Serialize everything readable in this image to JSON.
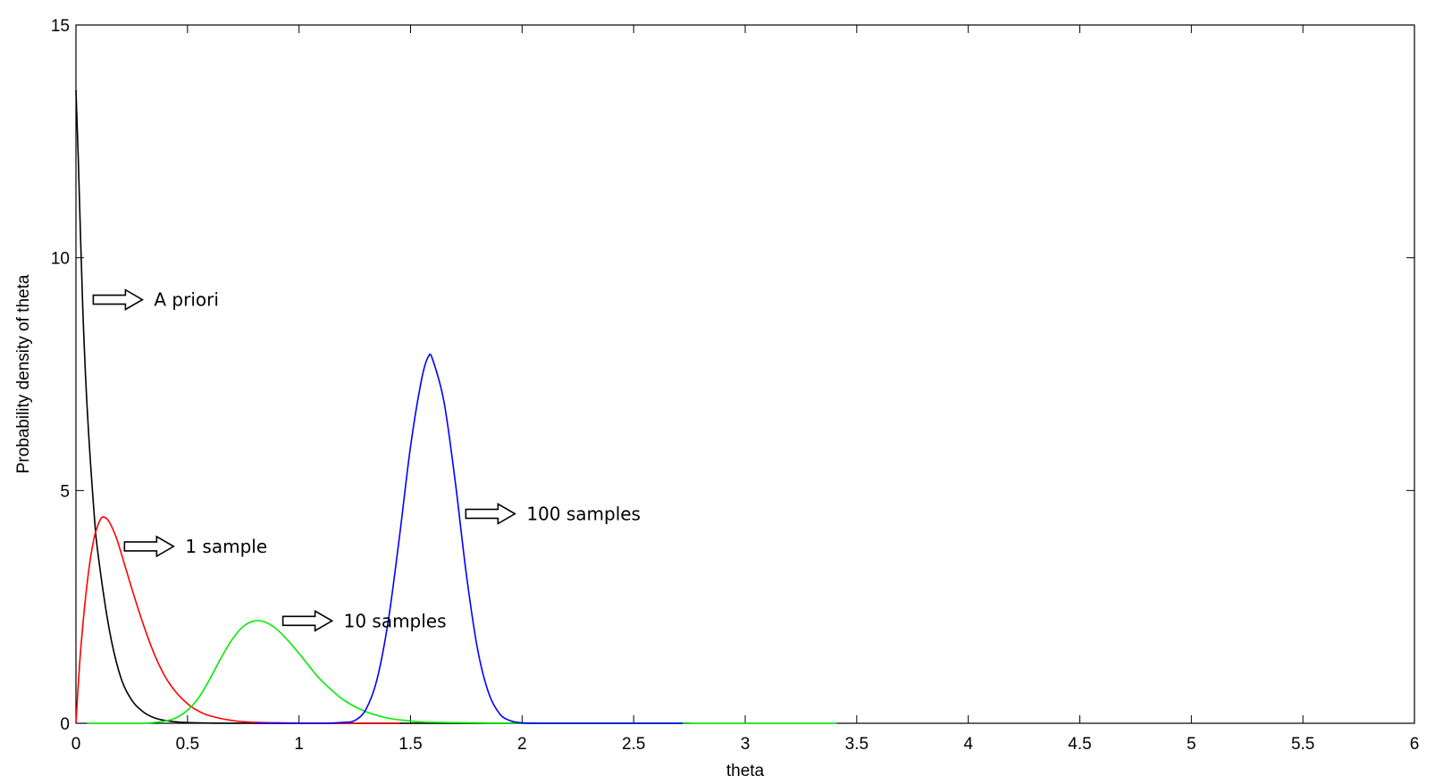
{
  "chart_data": {
    "type": "line",
    "title": "",
    "xlabel": "theta",
    "ylabel": "Probability density of theta",
    "xlim": [
      0,
      6
    ],
    "ylim": [
      0,
      15
    ],
    "x_ticks": [
      0,
      0.5,
      1,
      1.5,
      2,
      2.5,
      3,
      3.5,
      4,
      4.5,
      5,
      5.5,
      6
    ],
    "x_tick_labels": [
      "0",
      "0.5",
      "1",
      "1.5",
      "2",
      "2.5",
      "3",
      "3.5",
      "4",
      "4.5",
      "5",
      "5.5",
      "6"
    ],
    "y_ticks": [
      0,
      5,
      10,
      15
    ],
    "y_tick_labels": [
      "0",
      "5",
      "10",
      "15"
    ],
    "grid": false,
    "series": [
      {
        "color": "#000000",
        "x": [
          0,
          0.01,
          0.03,
          0.05,
          0.08,
          0.1,
          0.15,
          0.2,
          0.25,
          0.3,
          0.35,
          0.4,
          0.45,
          0.5,
          0.6,
          0.7,
          0.8,
          1.0,
          1.2,
          1.5,
          2.0,
          2.5,
          2.75
        ],
        "y": [
          13.6,
          12.2,
          9.0,
          6.8,
          4.6,
          3.6,
          2.0,
          1.0,
          0.5,
          0.25,
          0.12,
          0.06,
          0.03,
          0.015,
          0.005,
          0.001,
          0,
          0,
          0,
          0,
          0,
          0,
          0
        ]
      },
      {
        "color": "#ff0000",
        "x": [
          0,
          0.02,
          0.05,
          0.08,
          0.11,
          0.13,
          0.15,
          0.18,
          0.2,
          0.25,
          0.3,
          0.35,
          0.4,
          0.45,
          0.5,
          0.55,
          0.6,
          0.7,
          0.8,
          0.9,
          1.0,
          1.2,
          1.4,
          1.45
        ],
        "y": [
          0,
          1.5,
          3.0,
          3.95,
          4.38,
          4.42,
          4.32,
          4.0,
          3.7,
          2.9,
          2.15,
          1.5,
          1.0,
          0.66,
          0.42,
          0.26,
          0.16,
          0.06,
          0.02,
          0.01,
          0.005,
          0,
          0,
          0
        ]
      },
      {
        "color": "#00ee00",
        "x": [
          0.05,
          0.3,
          0.4,
          0.45,
          0.5,
          0.55,
          0.6,
          0.65,
          0.7,
          0.75,
          0.8,
          0.85,
          0.9,
          0.95,
          1.0,
          1.05,
          1.1,
          1.2,
          1.3,
          1.4,
          1.5,
          1.6,
          2.0,
          2.5,
          3.0,
          3.41
        ],
        "y": [
          0,
          0,
          0.05,
          0.12,
          0.28,
          0.55,
          0.95,
          1.4,
          1.8,
          2.08,
          2.2,
          2.17,
          2.02,
          1.78,
          1.5,
          1.2,
          0.92,
          0.5,
          0.25,
          0.11,
          0.05,
          0.02,
          0,
          0,
          0,
          0
        ]
      },
      {
        "color": "#0000ff",
        "x": [
          0.8,
          1.1,
          1.2,
          1.25,
          1.3,
          1.35,
          1.4,
          1.45,
          1.5,
          1.55,
          1.58,
          1.6,
          1.65,
          1.7,
          1.75,
          1.8,
          1.85,
          1.9,
          1.95,
          2.0,
          2.1,
          2.5,
          2.72
        ],
        "y": [
          0,
          0,
          0.02,
          0.06,
          0.3,
          0.95,
          2.2,
          4.0,
          5.95,
          7.4,
          7.88,
          7.8,
          6.9,
          5.2,
          3.2,
          1.6,
          0.65,
          0.2,
          0.05,
          0.01,
          0,
          0,
          0
        ]
      }
    ],
    "annotations": [
      {
        "text": "A priori",
        "x": 0.35,
        "y": 9.1
      },
      {
        "text": "1 sample",
        "x": 0.49,
        "y": 3.8
      },
      {
        "text": "10 samples",
        "x": 1.2,
        "y": 2.2
      },
      {
        "text": "100 samples",
        "x": 2.02,
        "y": 4.5
      }
    ]
  }
}
